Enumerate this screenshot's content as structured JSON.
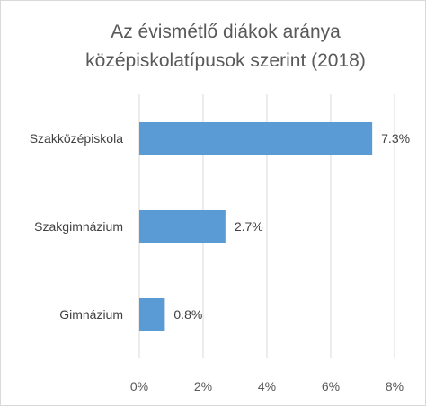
{
  "chart_data": {
    "type": "bar",
    "orientation": "horizontal",
    "title_lines": [
      "Az évismétlő diákok aránya",
      "középiskolatípusok szerint (2018)"
    ],
    "categories": [
      "Szakközépiskola",
      "Szakgimnázium",
      "Gimnázium"
    ],
    "values": [
      7.3,
      2.7,
      0.8
    ],
    "data_labels": [
      "7.3%",
      "2.7%",
      "0.8%"
    ],
    "x_ticks": [
      0,
      2,
      4,
      6,
      8
    ],
    "x_tick_labels": [
      "0%",
      "2%",
      "4%",
      "6%",
      "8%"
    ],
    "xlim": [
      0,
      8
    ],
    "grid": true,
    "legend": "none",
    "bar_color": "#5b9bd5",
    "grid_color": "#d9d9d9"
  }
}
